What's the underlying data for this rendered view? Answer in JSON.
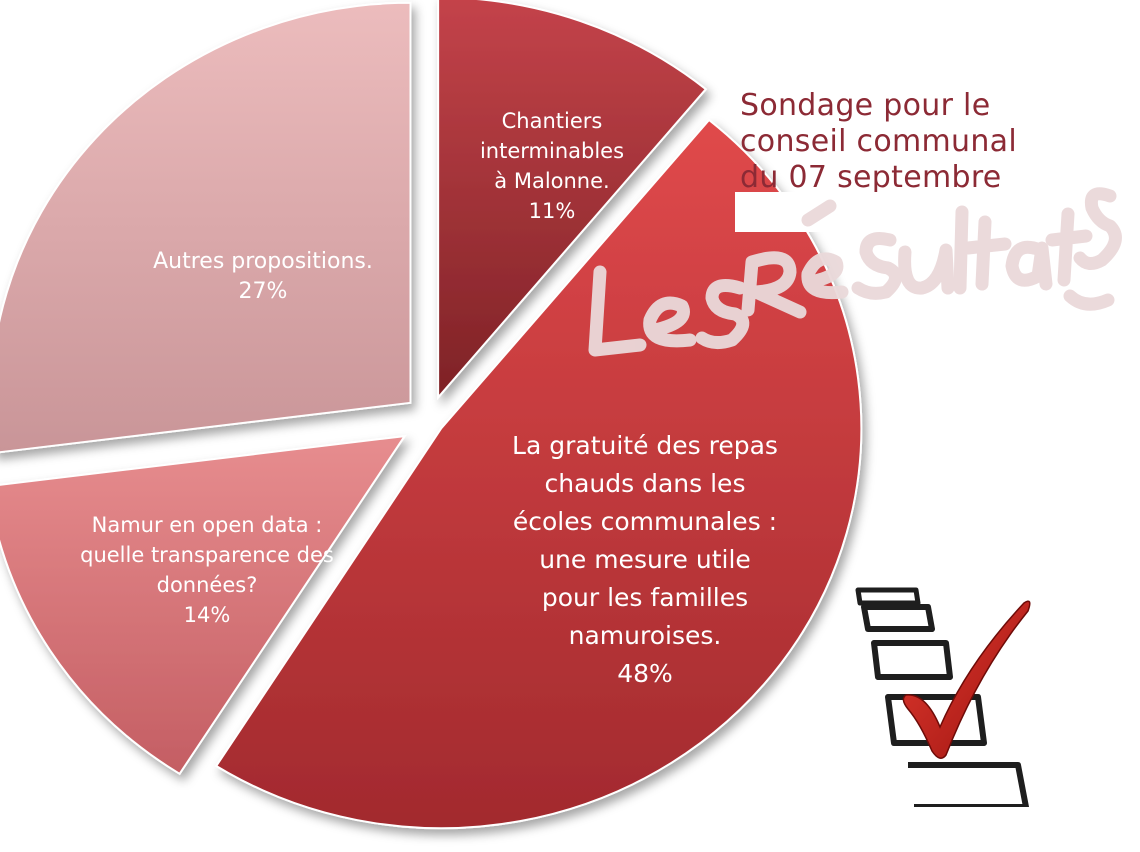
{
  "chart_data": {
    "type": "pie",
    "title": "Sondage pour le conseil communal du 07 septembre",
    "slices": [
      {
        "label": "Chantiers interminables à Malonne.",
        "value": 11,
        "value_label": "11%",
        "color": "#8f2a2f"
      },
      {
        "label": "La gratuité des repas chauds dans les écoles communales : une mesure utile pour les familles namuroises.",
        "value": 48,
        "value_label": "48%",
        "color": "#b93a3c"
      },
      {
        "label": "Namur en open data : quelle transparence des données?",
        "value": 14,
        "value_label": "14%",
        "color": "#d9787b"
      },
      {
        "label": "Autres propositions.",
        "value": 27,
        "value_label": "27%",
        "color": "#dea6a8"
      }
    ],
    "legend": "none",
    "grid": false
  },
  "title_lines": [
    "Sondage pour le",
    "conseil communal",
    "du 07 septembre"
  ],
  "handwritten_overlay": "Les Résultats",
  "illustration": "checklist-with-red-checkmark-icon"
}
